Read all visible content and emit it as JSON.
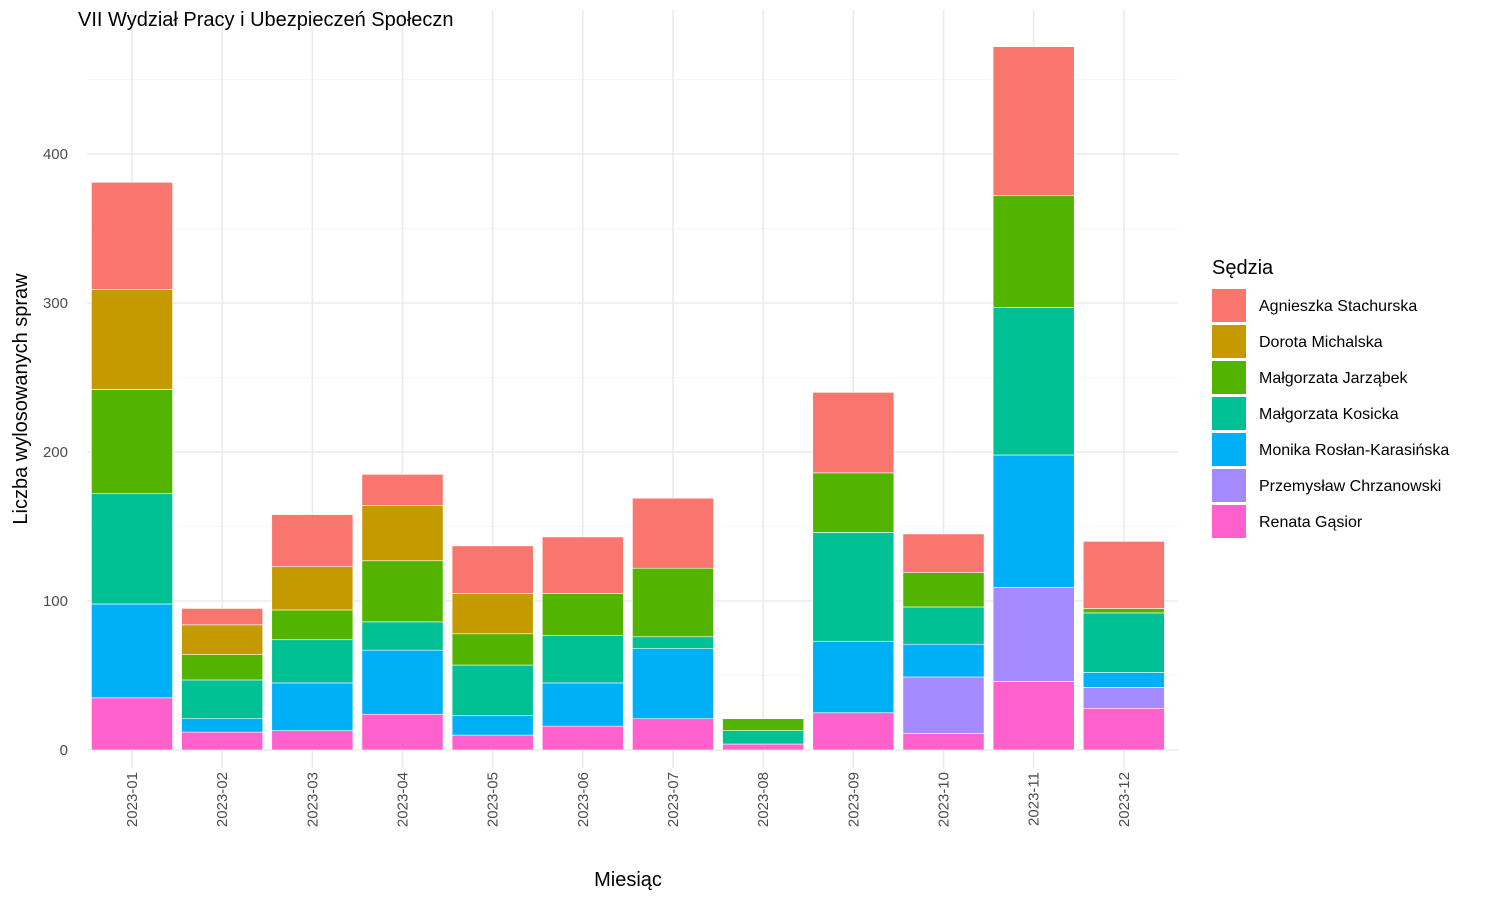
{
  "chart_data": {
    "type": "bar",
    "stacked": true,
    "title": "VII Wydział Pracy i Ubezpieczeń Społeczn",
    "xlabel": "Miesiąc",
    "ylabel": "Liczba wylosowanych spraw",
    "ylim": [
      0,
      490
    ],
    "yticks": [
      0,
      100,
      200,
      300,
      400
    ],
    "grid": true,
    "legend_position": "right",
    "legend_title": "Sędzia",
    "categories": [
      "2023-01",
      "2023-02",
      "2023-03",
      "2023-04",
      "2023-05",
      "2023-06",
      "2023-07",
      "2023-08",
      "2023-09",
      "2023-10",
      "2023-11",
      "2023-12"
    ],
    "series": [
      {
        "name": "Renata Gąsior",
        "color": "#FF61CC",
        "values": [
          35,
          12,
          13,
          24,
          10,
          16,
          21,
          4,
          25,
          11,
          46,
          28
        ]
      },
      {
        "name": "Przemysław Chrzanowski",
        "color": "#A58AFF",
        "values": [
          0,
          0,
          0,
          0,
          0,
          0,
          0,
          0,
          0,
          38,
          63,
          14
        ]
      },
      {
        "name": "Monika Rosłan-Karasińska",
        "color": "#00B0F6",
        "values": [
          63,
          9,
          32,
          43,
          13,
          29,
          47,
          0,
          48,
          22,
          89,
          10
        ]
      },
      {
        "name": "Małgorzata Kosicka",
        "color": "#00C094",
        "values": [
          74,
          26,
          29,
          19,
          34,
          32,
          8,
          9,
          73,
          25,
          99,
          40
        ]
      },
      {
        "name": "Małgorzata Jarząbek",
        "color": "#53B400",
        "values": [
          70,
          17,
          20,
          41,
          21,
          28,
          46,
          8,
          40,
          23,
          75,
          3
        ]
      },
      {
        "name": "Dorota Michalska",
        "color": "#C49A00",
        "values": [
          67,
          20,
          29,
          37,
          27,
          0,
          0,
          0,
          0,
          0,
          0,
          0
        ]
      },
      {
        "name": "Agnieszka Stachurska",
        "color": "#F8766D",
        "values": [
          72,
          11,
          35,
          21,
          32,
          38,
          47,
          0,
          54,
          26,
          100,
          45
        ]
      }
    ],
    "legend_order": [
      "Agnieszka Stachurska",
      "Dorota Michalska",
      "Małgorzata Jarząbek",
      "Małgorzata Kosicka",
      "Monika Rosłan-Karasińska",
      "Przemysław Chrzanowski",
      "Renata Gąsior"
    ]
  }
}
